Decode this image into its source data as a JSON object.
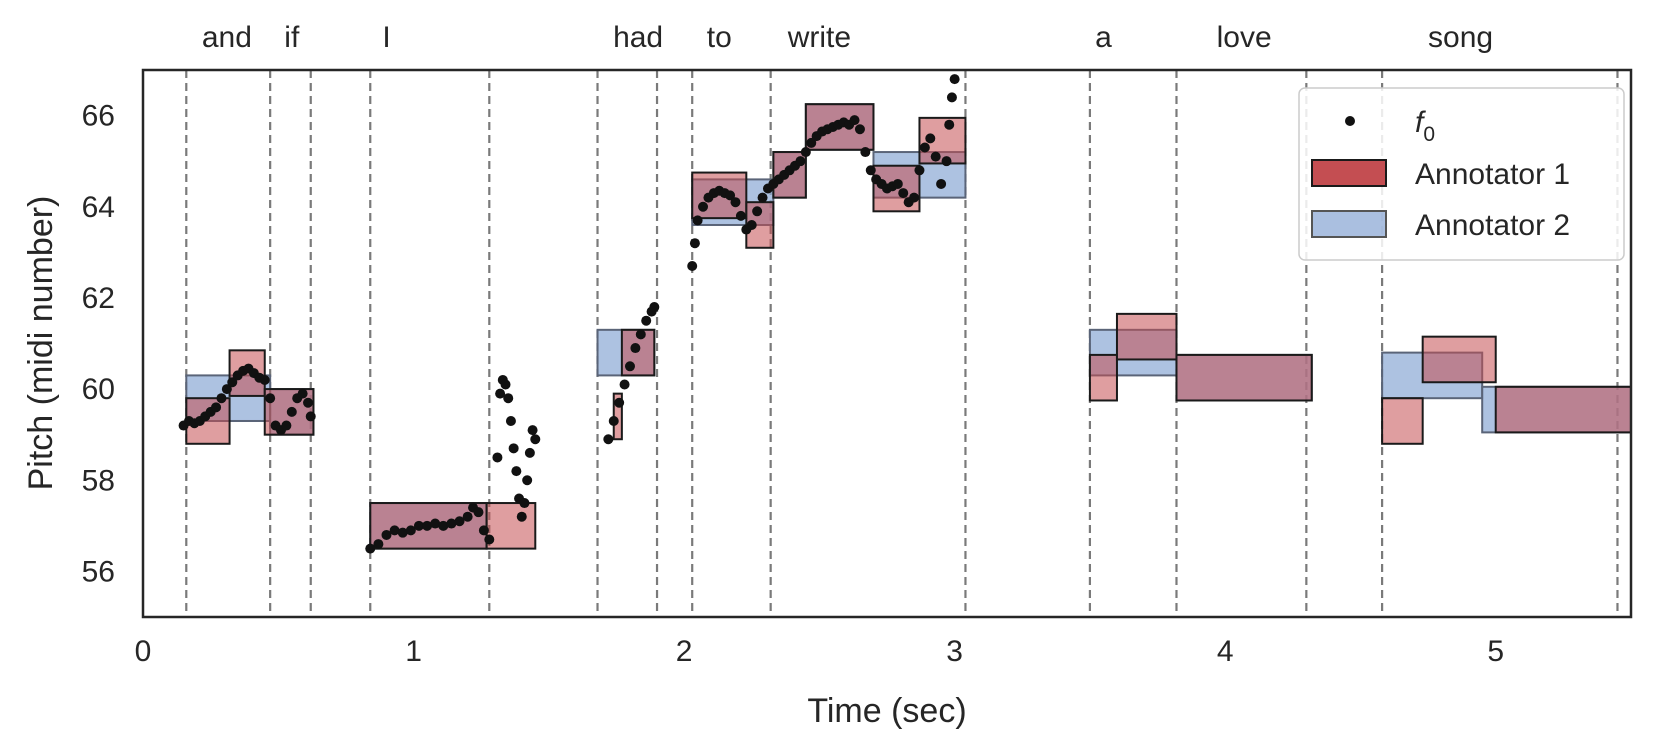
{
  "chart_data": {
    "type": "scatter",
    "xlabel": "Time (sec)",
    "ylabel": "Pitch (midi number)",
    "xlim": [
      0,
      5.5
    ],
    "ylim": [
      55,
      67
    ],
    "x_ticks": [
      0,
      1,
      2,
      3,
      4,
      5
    ],
    "x_tick_labels": [
      "0",
      "1",
      "2",
      "3",
      "4",
      "5"
    ],
    "y_ticks": [
      56,
      58,
      60,
      62,
      64,
      66
    ],
    "y_tick_labels": [
      "56",
      "58",
      "60",
      "62",
      "64",
      "66"
    ],
    "grid": false,
    "legend": {
      "placement": "top-right",
      "entries": [
        {
          "label": "f",
          "subscript": "0",
          "kind": "point",
          "color": "#111111"
        },
        {
          "label": "Annotator 1",
          "kind": "box",
          "color": "#c44e52"
        },
        {
          "label": "Annotator 2",
          "kind": "box",
          "color": "#8eaad6"
        }
      ]
    },
    "word_boundaries": [
      0.16,
      0.47,
      0.62,
      0.84,
      1.28,
      1.68,
      1.9,
      2.03,
      2.32,
      3.04,
      3.5,
      3.82,
      4.3,
      4.58,
      5.45
    ],
    "words": [
      {
        "text": "and",
        "t": 0.31
      },
      {
        "text": "if",
        "t": 0.55
      },
      {
        "text": "I",
        "t": 0.9
      },
      {
        "text": "had",
        "t": 1.83
      },
      {
        "text": "to",
        "t": 2.13
      },
      {
        "text": "write",
        "t": 2.5
      },
      {
        "text": "a",
        "t": 3.55
      },
      {
        "text": "love",
        "t": 4.07
      },
      {
        "text": "song",
        "t": 4.87
      }
    ],
    "annotator1_notes": [
      {
        "start": 0.16,
        "end": 0.32,
        "pitch": 59.3
      },
      {
        "start": 0.32,
        "end": 0.45,
        "pitch": 60.35
      },
      {
        "start": 0.45,
        "end": 0.63,
        "pitch": 59.5
      },
      {
        "start": 0.84,
        "end": 1.27,
        "pitch": 57.0
      },
      {
        "start": 1.27,
        "end": 1.45,
        "pitch": 57.0
      },
      {
        "start": 1.74,
        "end": 1.77,
        "pitch": 59.4
      },
      {
        "start": 1.77,
        "end": 1.89,
        "pitch": 60.8
      },
      {
        "start": 2.03,
        "end": 2.23,
        "pitch": 64.25
      },
      {
        "start": 2.23,
        "end": 2.33,
        "pitch": 63.6
      },
      {
        "start": 2.33,
        "end": 2.45,
        "pitch": 64.7
      },
      {
        "start": 2.45,
        "end": 2.7,
        "pitch": 65.75
      },
      {
        "start": 2.7,
        "end": 2.87,
        "pitch": 64.4
      },
      {
        "start": 2.87,
        "end": 3.04,
        "pitch": 65.45
      },
      {
        "start": 3.5,
        "end": 3.6,
        "pitch": 60.25
      },
      {
        "start": 3.6,
        "end": 3.82,
        "pitch": 61.15
      },
      {
        "start": 3.82,
        "end": 4.32,
        "pitch": 60.25
      },
      {
        "start": 4.58,
        "end": 4.73,
        "pitch": 59.3
      },
      {
        "start": 4.73,
        "end": 5.0,
        "pitch": 60.65
      },
      {
        "start": 5.0,
        "end": 5.5,
        "pitch": 59.55
      }
    ],
    "annotator2_notes": [
      {
        "start": 0.16,
        "end": 0.47,
        "pitch": 59.8
      },
      {
        "start": 0.47,
        "end": 0.63,
        "pitch": 59.5
      },
      {
        "start": 0.84,
        "end": 1.27,
        "pitch": 57.0
      },
      {
        "start": 1.68,
        "end": 1.89,
        "pitch": 60.8
      },
      {
        "start": 2.03,
        "end": 2.33,
        "pitch": 64.1
      },
      {
        "start": 2.33,
        "end": 2.45,
        "pitch": 64.7
      },
      {
        "start": 2.45,
        "end": 2.7,
        "pitch": 65.75
      },
      {
        "start": 2.7,
        "end": 3.04,
        "pitch": 64.7
      },
      {
        "start": 3.5,
        "end": 3.82,
        "pitch": 60.8
      },
      {
        "start": 3.82,
        "end": 4.32,
        "pitch": 60.25
      },
      {
        "start": 4.58,
        "end": 4.95,
        "pitch": 60.3
      },
      {
        "start": 4.95,
        "end": 5.5,
        "pitch": 59.55
      }
    ],
    "f0_points": [
      [
        0.15,
        59.2
      ],
      [
        0.17,
        59.3
      ],
      [
        0.19,
        59.25
      ],
      [
        0.21,
        59.3
      ],
      [
        0.23,
        59.4
      ],
      [
        0.25,
        59.5
      ],
      [
        0.27,
        59.6
      ],
      [
        0.29,
        59.8
      ],
      [
        0.31,
        60.0
      ],
      [
        0.33,
        60.15
      ],
      [
        0.35,
        60.3
      ],
      [
        0.37,
        60.4
      ],
      [
        0.39,
        60.45
      ],
      [
        0.41,
        60.35
      ],
      [
        0.43,
        60.25
      ],
      [
        0.45,
        60.2
      ],
      [
        0.47,
        59.8
      ],
      [
        0.49,
        59.2
      ],
      [
        0.51,
        59.1
      ],
      [
        0.53,
        59.2
      ],
      [
        0.55,
        59.5
      ],
      [
        0.57,
        59.8
      ],
      [
        0.59,
        59.9
      ],
      [
        0.61,
        59.7
      ],
      [
        0.62,
        59.4
      ],
      [
        0.84,
        56.5
      ],
      [
        0.87,
        56.6
      ],
      [
        0.9,
        56.8
      ],
      [
        0.93,
        56.9
      ],
      [
        0.96,
        56.85
      ],
      [
        0.99,
        56.9
      ],
      [
        1.02,
        57.0
      ],
      [
        1.05,
        57.0
      ],
      [
        1.08,
        57.05
      ],
      [
        1.11,
        57.0
      ],
      [
        1.14,
        57.05
      ],
      [
        1.17,
        57.1
      ],
      [
        1.2,
        57.2
      ],
      [
        1.22,
        57.4
      ],
      [
        1.24,
        57.3
      ],
      [
        1.26,
        56.9
      ],
      [
        1.28,
        56.7
      ],
      [
        1.31,
        58.5
      ],
      [
        1.32,
        59.9
      ],
      [
        1.33,
        60.2
      ],
      [
        1.34,
        60.1
      ],
      [
        1.35,
        59.8
      ],
      [
        1.36,
        59.3
      ],
      [
        1.37,
        58.7
      ],
      [
        1.38,
        58.2
      ],
      [
        1.39,
        57.6
      ],
      [
        1.4,
        57.2
      ],
      [
        1.41,
        57.5
      ],
      [
        1.42,
        58.0
      ],
      [
        1.43,
        58.6
      ],
      [
        1.44,
        59.1
      ],
      [
        1.45,
        58.9
      ],
      [
        1.72,
        58.9
      ],
      [
        1.74,
        59.3
      ],
      [
        1.76,
        59.7
      ],
      [
        1.78,
        60.1
      ],
      [
        1.8,
        60.5
      ],
      [
        1.82,
        60.9
      ],
      [
        1.84,
        61.2
      ],
      [
        1.86,
        61.5
      ],
      [
        1.88,
        61.7
      ],
      [
        1.89,
        61.8
      ],
      [
        2.03,
        62.7
      ],
      [
        2.04,
        63.2
      ],
      [
        2.05,
        63.7
      ],
      [
        2.07,
        64.0
      ],
      [
        2.09,
        64.2
      ],
      [
        2.11,
        64.3
      ],
      [
        2.13,
        64.35
      ],
      [
        2.15,
        64.3
      ],
      [
        2.17,
        64.25
      ],
      [
        2.19,
        64.1
      ],
      [
        2.21,
        63.8
      ],
      [
        2.23,
        63.5
      ],
      [
        2.25,
        63.6
      ],
      [
        2.27,
        63.9
      ],
      [
        2.29,
        64.2
      ],
      [
        2.31,
        64.4
      ],
      [
        2.33,
        64.5
      ],
      [
        2.35,
        64.6
      ],
      [
        2.37,
        64.7
      ],
      [
        2.39,
        64.8
      ],
      [
        2.41,
        64.9
      ],
      [
        2.43,
        65.0
      ],
      [
        2.45,
        65.2
      ],
      [
        2.47,
        65.4
      ],
      [
        2.49,
        65.55
      ],
      [
        2.51,
        65.65
      ],
      [
        2.53,
        65.7
      ],
      [
        2.55,
        65.75
      ],
      [
        2.57,
        65.8
      ],
      [
        2.59,
        65.85
      ],
      [
        2.61,
        65.8
      ],
      [
        2.63,
        65.9
      ],
      [
        2.65,
        65.7
      ],
      [
        2.67,
        65.2
      ],
      [
        2.69,
        64.8
      ],
      [
        2.71,
        64.6
      ],
      [
        2.73,
        64.5
      ],
      [
        2.75,
        64.4
      ],
      [
        2.77,
        64.45
      ],
      [
        2.79,
        64.5
      ],
      [
        2.81,
        64.3
      ],
      [
        2.83,
        64.1
      ],
      [
        2.85,
        64.2
      ],
      [
        2.87,
        64.8
      ],
      [
        2.89,
        65.3
      ],
      [
        2.91,
        65.5
      ],
      [
        2.93,
        65.1
      ],
      [
        2.95,
        64.5
      ],
      [
        2.97,
        65.0
      ],
      [
        2.98,
        65.8
      ],
      [
        2.99,
        66.4
      ],
      [
        3.0,
        66.8
      ]
    ]
  }
}
